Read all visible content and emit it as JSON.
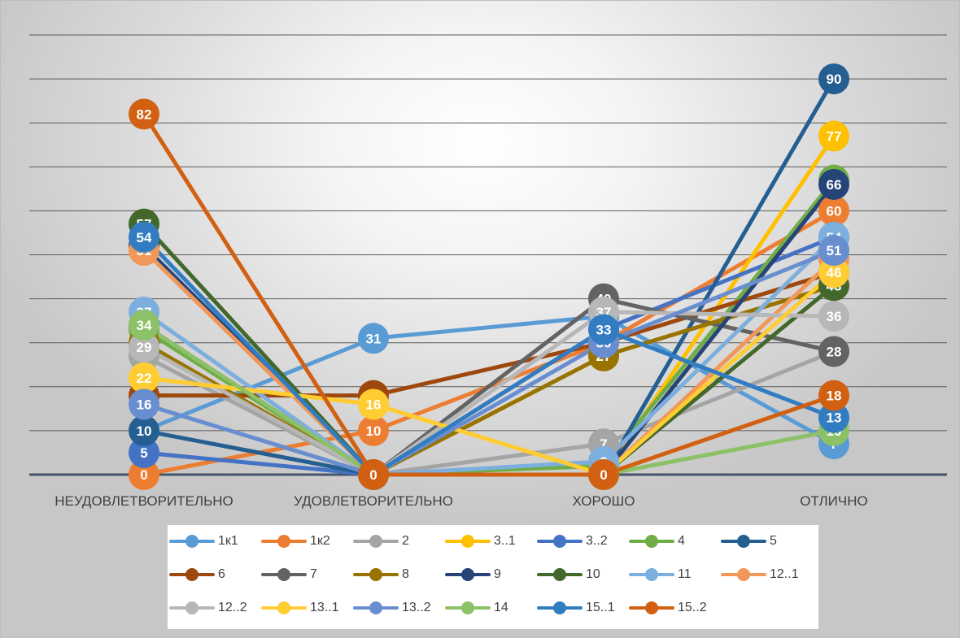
{
  "chart_data": {
    "type": "line",
    "title": "",
    "xlabel": "",
    "ylabel": "",
    "categories": [
      "НЕУДОВЛЕТВОРИТЕЛЬНО",
      "УДОВЛЕТВОРИТЕЛЬНО",
      "ХОРОШО",
      "ОТЛИЧНО"
    ],
    "ylim": [
      0,
      100
    ],
    "grid": true,
    "legend_position": "bottom",
    "data_labels": true,
    "series": [
      {
        "name": "1к1",
        "color": "#5b9bd5",
        "values": [
          10,
          31,
          36,
          7
        ]
      },
      {
        "name": "1к2",
        "color": "#ed7d31",
        "values": [
          0,
          10,
          30,
          60
        ]
      },
      {
        "name": "2",
        "color": "#a5a5a5",
        "values": [
          27,
          0,
          7,
          28
        ]
      },
      {
        "name": "3..1",
        "color": "#ffc000",
        "values": [
          22,
          16,
          0,
          77
        ]
      },
      {
        "name": "3..2",
        "color": "#4472c4",
        "values": [
          5,
          0,
          33,
          54
        ]
      },
      {
        "name": "4",
        "color": "#70ad47",
        "values": [
          33,
          0,
          2,
          67
        ]
      },
      {
        "name": "5",
        "color": "#255e91",
        "values": [
          10,
          0,
          0,
          90
        ]
      },
      {
        "name": "6",
        "color": "#9e480e",
        "values": [
          18,
          18,
          30,
          46
        ]
      },
      {
        "name": "7",
        "color": "#636363",
        "values": [
          34,
          0,
          40,
          28
        ]
      },
      {
        "name": "8",
        "color": "#997300",
        "values": [
          30,
          0,
          27,
          43
        ]
      },
      {
        "name": "9",
        "color": "#264478",
        "values": [
          52,
          0,
          0,
          66
        ]
      },
      {
        "name": "10",
        "color": "#43682b",
        "values": [
          57,
          0,
          0,
          43
        ]
      },
      {
        "name": "11",
        "color": "#7cafdd",
        "values": [
          37,
          0,
          3,
          54
        ]
      },
      {
        "name": "12..1",
        "color": "#f1975a",
        "values": [
          51,
          0,
          0,
          49
        ]
      },
      {
        "name": "12..2",
        "color": "#b7b7b7",
        "values": [
          29,
          0,
          37,
          36
        ]
      },
      {
        "name": "13..1",
        "color": "#ffcd33",
        "values": [
          22,
          16,
          0,
          46
        ]
      },
      {
        "name": "13..2",
        "color": "#698ed0",
        "values": [
          16,
          0,
          30,
          51
        ]
      },
      {
        "name": "14",
        "color": "#8cc168",
        "values": [
          34,
          0,
          0,
          10
        ]
      },
      {
        "name": "15..1",
        "color": "#327dc2",
        "values": [
          54,
          0,
          33,
          13
        ]
      },
      {
        "name": "15..2",
        "color": "#d26012",
        "values": [
          82,
          0,
          0,
          18
        ]
      }
    ]
  }
}
